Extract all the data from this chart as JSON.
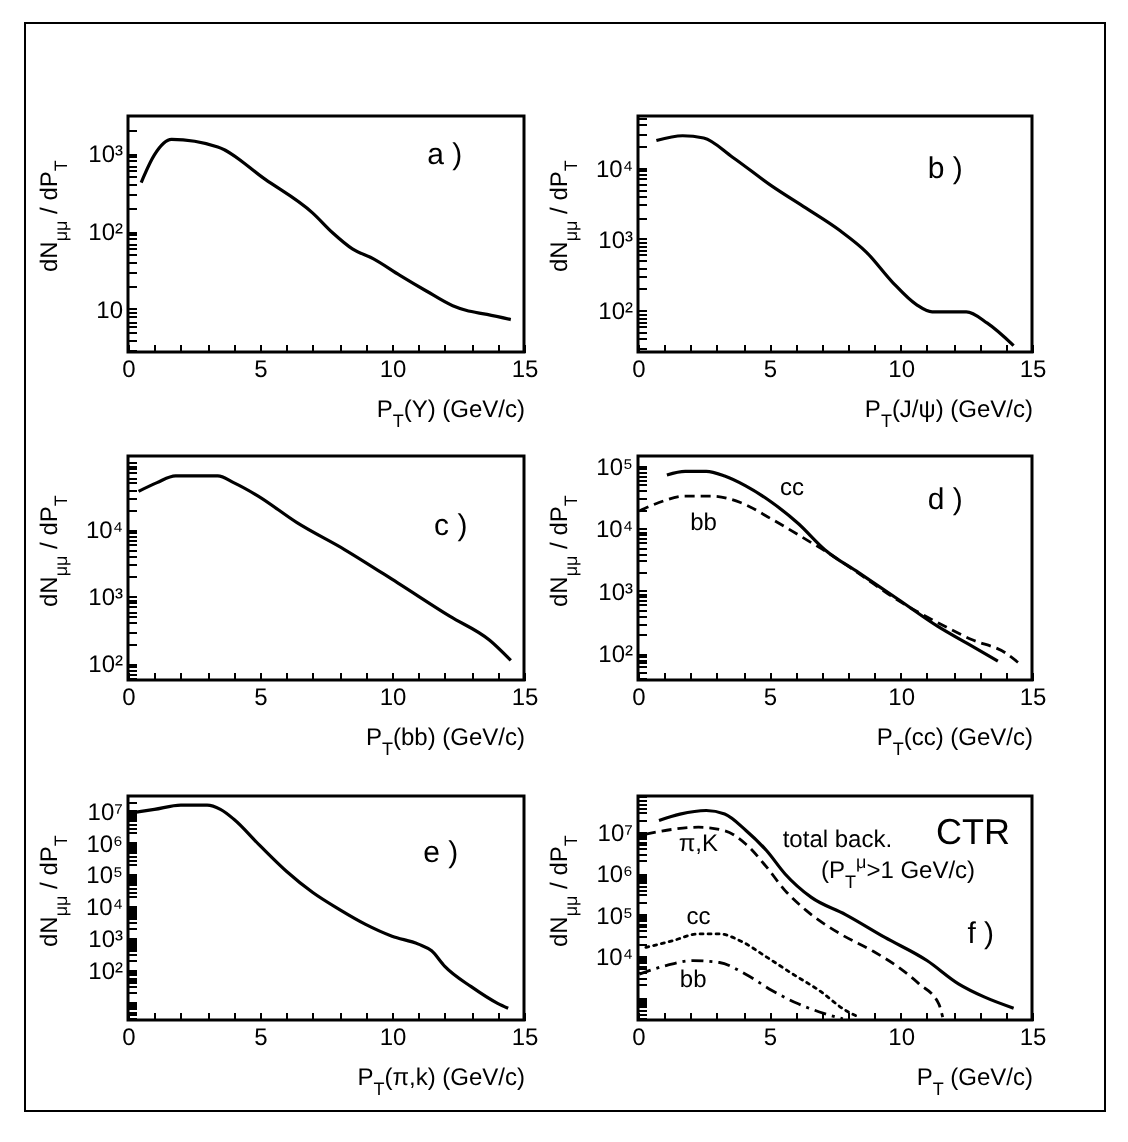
{
  "chart_data": [
    {
      "type": "line",
      "xlabel": "P$_{T}$(Υ) (GeV/c)",
      "ylabel": "dN$_{μμ}$ / dP$_{T}$",
      "annotations": [
        "a )"
      ],
      "log": "y",
      "xlim": [
        0,
        15
      ],
      "ylim": [
        2.8,
        3000
      ],
      "xticks": [
        0,
        {
          "value": 1,
          "label": null
        },
        {
          "value": 2,
          "label": null
        },
        {
          "value": 3,
          "label": null
        },
        {
          "value": 4,
          "label": null
        },
        5,
        {
          "value": 6,
          "label": null
        },
        {
          "value": 7,
          "label": null
        },
        {
          "value": 8,
          "label": null
        },
        {
          "value": 9,
          "label": null
        },
        10,
        {
          "value": 11,
          "label": null
        },
        {
          "value": 12,
          "label": null
        },
        {
          "value": 13,
          "label": null
        },
        {
          "value": 14,
          "label": null
        },
        15
      ],
      "yticks": [
        {
          "value": 3,
          "label": null
        },
        {
          "value": 4,
          "label": null
        },
        {
          "value": 5,
          "label": null
        },
        {
          "value": 6,
          "label": null
        },
        {
          "value": 7,
          "label": null
        },
        {
          "value": 8,
          "label": null
        },
        {
          "value": 9,
          "label": null
        },
        10,
        {
          "value": 20,
          "label": null
        },
        {
          "value": 30,
          "label": null
        },
        {
          "value": 40,
          "label": null
        },
        {
          "value": 50,
          "label": null
        },
        {
          "value": 60,
          "label": null
        },
        {
          "value": 70,
          "label": null
        },
        {
          "value": 80,
          "label": null
        },
        {
          "value": 90,
          "label": null
        },
        {
          "value": 100,
          "label": "10²"
        },
        {
          "value": 200,
          "label": null
        },
        {
          "value": 300,
          "label": null
        },
        {
          "value": 400,
          "label": null
        },
        {
          "value": 500,
          "label": null
        },
        {
          "value": 600,
          "label": null
        },
        {
          "value": 700,
          "label": null
        },
        {
          "value": 800,
          "label": null
        },
        {
          "value": 900,
          "label": null
        },
        {
          "value": 1000,
          "label": "10³"
        },
        {
          "value": 2000,
          "label": null
        }
      ],
      "series": [
        {
          "color": "#000000",
          "x": [
            0.5,
            1.0,
            1.65,
            3.4,
            5.2,
            7.0,
            7.75,
            8.5,
            9.3,
            10.3,
            11.3,
            12.3,
            12.8,
            13.6,
            14.5
          ],
          "values": [
            420,
            950,
            1500,
            1200,
            460,
            170,
            95,
            59,
            44,
            27,
            17,
            11,
            9.6,
            8.5,
            7.3
          ]
        }
      ]
    },
    {
      "type": "line",
      "xlabel": "P$_{T}$(J/ψ) (GeV/c)",
      "ylabel": "dN$_{μμ}$ / dP$_{T}$",
      "annotations": [
        "b )"
      ],
      "log": "y",
      "xlim": [
        0,
        15
      ],
      "ylim": [
        26,
        53000
      ],
      "xticks": [
        0,
        {
          "value": 1,
          "label": null
        },
        {
          "value": 2,
          "label": null
        },
        {
          "value": 3,
          "label": null
        },
        {
          "value": 4,
          "label": null
        },
        5,
        {
          "value": 6,
          "label": null
        },
        {
          "value": 7,
          "label": null
        },
        {
          "value": 8,
          "label": null
        },
        {
          "value": 9,
          "label": null
        },
        10,
        {
          "value": 11,
          "label": null
        },
        {
          "value": 12,
          "label": null
        },
        {
          "value": 13,
          "label": null
        },
        {
          "value": 14,
          "label": null
        },
        15
      ],
      "yticks": [
        {
          "value": 30,
          "label": null
        },
        {
          "value": 40,
          "label": null
        },
        {
          "value": 50,
          "label": null
        },
        {
          "value": 60,
          "label": null
        },
        {
          "value": 70,
          "label": null
        },
        {
          "value": 80,
          "label": null
        },
        {
          "value": 90,
          "label": null
        },
        {
          "value": 100,
          "label": "10²"
        },
        {
          "value": 200,
          "label": null
        },
        {
          "value": 300,
          "label": null
        },
        {
          "value": 400,
          "label": null
        },
        {
          "value": 500,
          "label": null
        },
        {
          "value": 600,
          "label": null
        },
        {
          "value": 700,
          "label": null
        },
        {
          "value": 800,
          "label": null
        },
        {
          "value": 900,
          "label": null
        },
        {
          "value": 1000,
          "label": "10³"
        },
        {
          "value": 2000,
          "label": null
        },
        {
          "value": 3000,
          "label": null
        },
        {
          "value": 4000,
          "label": null
        },
        {
          "value": 5000,
          "label": null
        },
        {
          "value": 6000,
          "label": null
        },
        {
          "value": 7000,
          "label": null
        },
        {
          "value": 8000,
          "label": null
        },
        {
          "value": 9000,
          "label": null
        },
        {
          "value": 10000,
          "label": "10⁴"
        },
        {
          "value": 20000,
          "label": null
        },
        {
          "value": 30000,
          "label": null
        },
        {
          "value": 40000,
          "label": null
        },
        {
          "value": 50000,
          "label": null
        }
      ],
      "series": [
        {
          "color": "#000000",
          "x": [
            0.7,
            1.7,
            2.5,
            3.6,
            5.1,
            6.4,
            7.7,
            8.7,
            9.7,
            10.6,
            11.2,
            12.5,
            13.3,
            14.3
          ],
          "values": [
            24000,
            28000,
            26000,
            14000,
            5500,
            2700,
            1300,
            650,
            245,
            120,
            95,
            95,
            66,
            32
          ]
        }
      ]
    },
    {
      "type": "line",
      "xlabel": "P$_{T}$(bb) (GeV/c)",
      "ylabel": "dN$_{μμ}$ / dP$_{T}$",
      "annotations": [
        "c )"
      ],
      "log": "y",
      "xlim": [
        0,
        15
      ],
      "ylim": [
        56,
        125000
      ],
      "xticks": [
        0,
        {
          "value": 1,
          "label": null
        },
        {
          "value": 2,
          "label": null
        },
        {
          "value": 3,
          "label": null
        },
        {
          "value": 4,
          "label": null
        },
        5,
        {
          "value": 6,
          "label": null
        },
        {
          "value": 7,
          "label": null
        },
        {
          "value": 8,
          "label": null
        },
        {
          "value": 9,
          "label": null
        },
        10,
        {
          "value": 11,
          "label": null
        },
        {
          "value": 12,
          "label": null
        },
        {
          "value": 13,
          "label": null
        },
        {
          "value": 14,
          "label": null
        },
        15
      ],
      "yticks": [
        {
          "value": 60,
          "label": null
        },
        {
          "value": 70,
          "label": null
        },
        {
          "value": 80,
          "label": null
        },
        {
          "value": 90,
          "label": null
        },
        {
          "value": 100,
          "label": "10²"
        },
        {
          "value": 200,
          "label": null
        },
        {
          "value": 300,
          "label": null
        },
        {
          "value": 400,
          "label": null
        },
        {
          "value": 500,
          "label": null
        },
        {
          "value": 600,
          "label": null
        },
        {
          "value": 700,
          "label": null
        },
        {
          "value": 800,
          "label": null
        },
        {
          "value": 900,
          "label": null
        },
        {
          "value": 1000,
          "label": "10³"
        },
        {
          "value": 2000,
          "label": null
        },
        {
          "value": 3000,
          "label": null
        },
        {
          "value": 4000,
          "label": null
        },
        {
          "value": 5000,
          "label": null
        },
        {
          "value": 6000,
          "label": null
        },
        {
          "value": 7000,
          "label": null
        },
        {
          "value": 8000,
          "label": null
        },
        {
          "value": 9000,
          "label": null
        },
        {
          "value": 10000,
          "label": "10⁴"
        },
        {
          "value": 20000,
          "label": null
        },
        {
          "value": 30000,
          "label": null
        },
        {
          "value": 40000,
          "label": null
        },
        {
          "value": 50000,
          "label": null
        },
        {
          "value": 60000,
          "label": null
        },
        {
          "value": 70000,
          "label": null
        },
        {
          "value": 80000,
          "label": null
        },
        {
          "value": 90000,
          "label": null
        },
        {
          "value": 100000,
          "label": null
        }
      ],
      "series": [
        {
          "color": "#000000",
          "x": [
            0.4,
            1.1,
            1.8,
            3.4,
            4.0,
            4.9,
            6.4,
            8.2,
            10.2,
            12.2,
            13.7,
            14.5
          ],
          "values": [
            37000,
            50000,
            63000,
            63000,
            50000,
            32000,
            12600,
            5000,
            1600,
            500,
            220,
            110
          ]
        }
      ]
    },
    {
      "type": "line",
      "xlabel": "P$_{T}$(cc) (GeV/c)",
      "ylabel": "dN$_{μμ}$ / dP$_{T}$",
      "annotations": [
        "d )"
      ],
      "log": "y",
      "xlim": [
        0,
        15
      ],
      "ylim": [
        37,
        145000
      ],
      "xticks": [
        0,
        {
          "value": 1,
          "label": null
        },
        {
          "value": 2,
          "label": null
        },
        {
          "value": 3,
          "label": null
        },
        {
          "value": 4,
          "label": null
        },
        5,
        {
          "value": 6,
          "label": null
        },
        {
          "value": 7,
          "label": null
        },
        {
          "value": 8,
          "label": null
        },
        {
          "value": 9,
          "label": null
        },
        10,
        {
          "value": 11,
          "label": null
        },
        {
          "value": 12,
          "label": null
        },
        {
          "value": 13,
          "label": null
        },
        {
          "value": 14,
          "label": null
        },
        15
      ],
      "yticks": [
        {
          "value": 40,
          "label": null
        },
        {
          "value": 50,
          "label": null
        },
        {
          "value": 60,
          "label": null
        },
        {
          "value": 70,
          "label": null
        },
        {
          "value": 80,
          "label": null
        },
        {
          "value": 90,
          "label": null
        },
        {
          "value": 100,
          "label": "10²"
        },
        {
          "value": 200,
          "label": null
        },
        {
          "value": 300,
          "label": null
        },
        {
          "value": 400,
          "label": null
        },
        {
          "value": 500,
          "label": null
        },
        {
          "value": 600,
          "label": null
        },
        {
          "value": 700,
          "label": null
        },
        {
          "value": 800,
          "label": null
        },
        {
          "value": 900,
          "label": null
        },
        {
          "value": 1000,
          "label": "10³"
        },
        {
          "value": 2000,
          "label": null
        },
        {
          "value": 3000,
          "label": null
        },
        {
          "value": 4000,
          "label": null
        },
        {
          "value": 5000,
          "label": null
        },
        {
          "value": 6000,
          "label": null
        },
        {
          "value": 7000,
          "label": null
        },
        {
          "value": 8000,
          "label": null
        },
        {
          "value": 9000,
          "label": null
        },
        {
          "value": 10000,
          "label": "10⁴"
        },
        {
          "value": 20000,
          "label": null
        },
        {
          "value": 30000,
          "label": null
        },
        {
          "value": 40000,
          "label": null
        },
        {
          "value": 50000,
          "label": null
        },
        {
          "value": 60000,
          "label": null
        },
        {
          "value": 70000,
          "label": null
        },
        {
          "value": 80000,
          "label": null
        },
        {
          "value": 90000,
          "label": null
        },
        {
          "value": 100000,
          "label": "10⁵"
        }
      ],
      "series": [
        {
          "name": "cc",
          "color": "#000000",
          "line_style": "solid",
          "x": [
            1.1,
            1.8,
            2.6,
            3.3,
            4.1,
            5.1,
            6.1,
            7.1,
            8.4,
            9.9,
            11.4,
            12.7,
            13.7
          ],
          "values": [
            72000,
            82000,
            82000,
            69000,
            48000,
            26000,
            12000,
            4600,
            1950,
            730,
            270,
            130,
            74
          ]
        },
        {
          "name": "bb",
          "color": "#000000",
          "line_style": "dashed",
          "x": [
            0.05,
            0.8,
            1.8,
            2.8,
            3.9,
            5.1,
            6.6,
            7.1,
            8.4,
            9.9,
            11.4,
            12.7,
            14.0,
            14.5
          ],
          "values": [
            19000,
            26000,
            33000,
            33000,
            26000,
            14000,
            5900,
            4400,
            1900,
            700,
            310,
            165,
            100,
            69
          ]
        }
      ]
    },
    {
      "type": "line",
      "xlabel": "P$_{T}$(π,k) (GeV/c)",
      "ylabel": "dN$_{μμ}$ / dP$_{T}$",
      "annotations": [
        "e )"
      ],
      "log": "y",
      "xlim": [
        0,
        15
      ],
      "ylim": [
        2.7,
        29000000
      ],
      "xticks": [
        0,
        {
          "value": 1,
          "label": null
        },
        {
          "value": 2,
          "label": null
        },
        {
          "value": 3,
          "label": null
        },
        {
          "value": 4,
          "label": null
        },
        5,
        {
          "value": 6,
          "label": null
        },
        {
          "value": 7,
          "label": null
        },
        {
          "value": 8,
          "label": null
        },
        {
          "value": 9,
          "label": null
        },
        10,
        {
          "value": 11,
          "label": null
        },
        {
          "value": 12,
          "label": null
        },
        {
          "value": 13,
          "label": null
        },
        {
          "value": 14,
          "label": null
        },
        15
      ],
      "yticks": [
        {
          "value": 3,
          "label": null
        },
        {
          "value": 4,
          "label": null
        },
        {
          "value": 5,
          "label": null
        },
        {
          "value": 6,
          "label": null
        },
        {
          "value": 7,
          "label": null
        },
        {
          "value": 8,
          "label": null
        },
        {
          "value": 9,
          "label": null
        },
        {
          "value": 10,
          "label": null
        },
        {
          "value": 20,
          "label": null
        },
        {
          "value": 30,
          "label": null
        },
        {
          "value": 40,
          "label": null
        },
        {
          "value": 50,
          "label": null
        },
        {
          "value": 60,
          "label": null
        },
        {
          "value": 70,
          "label": null
        },
        {
          "value": 80,
          "label": null
        },
        {
          "value": 90,
          "label": null
        },
        {
          "value": 100,
          "label": "10²"
        },
        {
          "value": 200,
          "label": null
        },
        {
          "value": 300,
          "label": null
        },
        {
          "value": 400,
          "label": null
        },
        {
          "value": 500,
          "label": null
        },
        {
          "value": 600,
          "label": null
        },
        {
          "value": 700,
          "label": null
        },
        {
          "value": 800,
          "label": null
        },
        {
          "value": 900,
          "label": null
        },
        {
          "value": 1000,
          "label": "10³"
        },
        {
          "value": 2000,
          "label": null
        },
        {
          "value": 3000,
          "label": null
        },
        {
          "value": 4000,
          "label": null
        },
        {
          "value": 5000,
          "label": null
        },
        {
          "value": 6000,
          "label": null
        },
        {
          "value": 7000,
          "label": null
        },
        {
          "value": 8000,
          "label": null
        },
        {
          "value": 9000,
          "label": null
        },
        {
          "value": 10000,
          "label": "10⁴"
        },
        {
          "value": 20000,
          "label": null
        },
        {
          "value": 30000,
          "label": null
        },
        {
          "value": 40000,
          "label": null
        },
        {
          "value": 50000,
          "label": null
        },
        {
          "value": 60000,
          "label": null
        },
        {
          "value": 70000,
          "label": null
        },
        {
          "value": 80000,
          "label": null
        },
        {
          "value": 90000,
          "label": null
        },
        {
          "value": 100000,
          "label": "10⁵"
        },
        {
          "value": 200000,
          "label": null
        },
        {
          "value": 300000,
          "label": null
        },
        {
          "value": 400000,
          "label": null
        },
        {
          "value": 500000,
          "label": null
        },
        {
          "value": 600000,
          "label": null
        },
        {
          "value": 700000,
          "label": null
        },
        {
          "value": 800000,
          "label": null
        },
        {
          "value": 900000,
          "label": null
        },
        {
          "value": 1000000,
          "label": "10⁶"
        },
        {
          "value": 2000000,
          "label": null
        },
        {
          "value": 3000000,
          "label": null
        },
        {
          "value": 4000000,
          "label": null
        },
        {
          "value": 5000000,
          "label": null
        },
        {
          "value": 6000000,
          "label": null
        },
        {
          "value": 7000000,
          "label": null
        },
        {
          "value": 8000000,
          "label": null
        },
        {
          "value": 9000000,
          "label": null
        },
        {
          "value": 10000000,
          "label": "10⁷"
        },
        {
          "value": 20000000,
          "label": null
        }
      ],
      "series": [
        {
          "color": "#000000",
          "x": [
            0.25,
            1,
            2,
            3,
            3.5,
            4,
            5,
            6,
            7,
            8,
            9,
            10,
            11,
            11.5,
            12,
            13,
            14,
            14.4
          ],
          "values": [
            8900000,
            11000000,
            15000000,
            15000000,
            11000000,
            5500000,
            800000,
            126000,
            27000,
            8000,
            2700,
            1150,
            650,
            400,
            130,
            30,
            9,
            6.3
          ]
        }
      ]
    },
    {
      "type": "line",
      "xlabel": "P$_{T}$ (GeV/c)",
      "ylabel": "dN$_{μμ}$ / dP$_{T}$",
      "annotations": [
        "CTR",
        "(P$_{T}$$^{μ}$>1 GeV/c)",
        "f )"
      ],
      "log": "y",
      "xlim": [
        0,
        15
      ],
      "ylim": [
        280,
        74000000
      ],
      "xticks": [
        0,
        {
          "value": 1,
          "label": null
        },
        {
          "value": 2,
          "label": null
        },
        {
          "value": 3,
          "label": null
        },
        {
          "value": 4,
          "label": null
        },
        5,
        {
          "value": 6,
          "label": null
        },
        {
          "value": 7,
          "label": null
        },
        {
          "value": 8,
          "label": null
        },
        {
          "value": 9,
          "label": null
        },
        10,
        {
          "value": 11,
          "label": null
        },
        {
          "value": 12,
          "label": null
        },
        {
          "value": 13,
          "label": null
        },
        {
          "value": 14,
          "label": null
        },
        15
      ],
      "yticks": [
        {
          "value": 300,
          "label": null
        },
        {
          "value": 400,
          "label": null
        },
        {
          "value": 500,
          "label": null
        },
        {
          "value": 600,
          "label": null
        },
        {
          "value": 700,
          "label": null
        },
        {
          "value": 800,
          "label": null
        },
        {
          "value": 900,
          "label": null
        },
        {
          "value": 1000,
          "label": null
        },
        {
          "value": 2000,
          "label": null
        },
        {
          "value": 3000,
          "label": null
        },
        {
          "value": 4000,
          "label": null
        },
        {
          "value": 5000,
          "label": null
        },
        {
          "value": 6000,
          "label": null
        },
        {
          "value": 7000,
          "label": null
        },
        {
          "value": 8000,
          "label": null
        },
        {
          "value": 9000,
          "label": null
        },
        {
          "value": 10000,
          "label": "10⁴"
        },
        {
          "value": 20000,
          "label": null
        },
        {
          "value": 30000,
          "label": null
        },
        {
          "value": 40000,
          "label": null
        },
        {
          "value": 50000,
          "label": null
        },
        {
          "value": 60000,
          "label": null
        },
        {
          "value": 70000,
          "label": null
        },
        {
          "value": 80000,
          "label": null
        },
        {
          "value": 90000,
          "label": null
        },
        {
          "value": 100000,
          "label": "10⁵"
        },
        {
          "value": 200000,
          "label": null
        },
        {
          "value": 300000,
          "label": null
        },
        {
          "value": 400000,
          "label": null
        },
        {
          "value": 500000,
          "label": null
        },
        {
          "value": 600000,
          "label": null
        },
        {
          "value": 700000,
          "label": null
        },
        {
          "value": 800000,
          "label": null
        },
        {
          "value": 900000,
          "label": null
        },
        {
          "value": 1000000,
          "label": "10⁶"
        },
        {
          "value": 2000000,
          "label": null
        },
        {
          "value": 3000000,
          "label": null
        },
        {
          "value": 4000000,
          "label": null
        },
        {
          "value": 5000000,
          "label": null
        },
        {
          "value": 6000000,
          "label": null
        },
        {
          "value": 7000000,
          "label": null
        },
        {
          "value": 8000000,
          "label": null
        },
        {
          "value": 9000000,
          "label": null
        },
        {
          "value": 10000000,
          "label": "10⁷"
        },
        {
          "value": 20000000,
          "label": null
        },
        {
          "value": 30000000,
          "label": null
        },
        {
          "value": 40000000,
          "label": null
        },
        {
          "value": 50000000,
          "label": null
        },
        {
          "value": 60000000,
          "label": null
        },
        {
          "value": 70000000,
          "label": null
        }
      ],
      "series": [
        {
          "name": "total back.",
          "color": "#000000",
          "line_style": "solid",
          "x": [
            0.8,
            1.6,
            2.6,
            3.3,
            4.1,
            4.9,
            5.6,
            6.6,
            7.9,
            9.4,
            11.0,
            12.2,
            13.2,
            14.3
          ],
          "values": [
            19000000,
            27000000,
            33000000,
            27000000,
            11000000,
            3500000,
            960000,
            260000,
            100000,
            28000,
            7700,
            2100,
            1000,
            540
          ]
        },
        {
          "name": "π,K",
          "color": "#000000",
          "line_style": "dashed",
          "x": [
            0.3,
            1.3,
            2.3,
            3.3,
            4.1,
            4.9,
            5.6,
            6.4,
            7.7,
            8.9,
            9.9,
            10.7,
            11.45,
            11.6
          ],
          "values": [
            8900000,
            11500000,
            13000000,
            10700000,
            5100000,
            1400000,
            380000,
            126000,
            34000,
            13500,
            5400,
            2100,
            690,
            330
          ]
        },
        {
          "name": "cc",
          "color": "#000000",
          "line_style": "dotted",
          "x": [
            0.3,
            1.3,
            2.3,
            3.1,
            3.9,
            4.9,
            5.9,
            6.9,
            7.9,
            8.4
          ],
          "values": [
            16000,
            23000,
            34000,
            34000,
            23000,
            9300,
            3600,
            1450,
            480,
            330
          ]
        },
        {
          "name": "bb",
          "color": "#000000",
          "line_style": "dashdot",
          "x": [
            0.05,
            1.1,
            2.1,
            3.1,
            4.1,
            5.1,
            6.1,
            7.1,
            7.8
          ],
          "values": [
            3600,
            5900,
            7700,
            6900,
            3600,
            1450,
            690,
            400,
            300
          ]
        }
      ]
    }
  ]
}
